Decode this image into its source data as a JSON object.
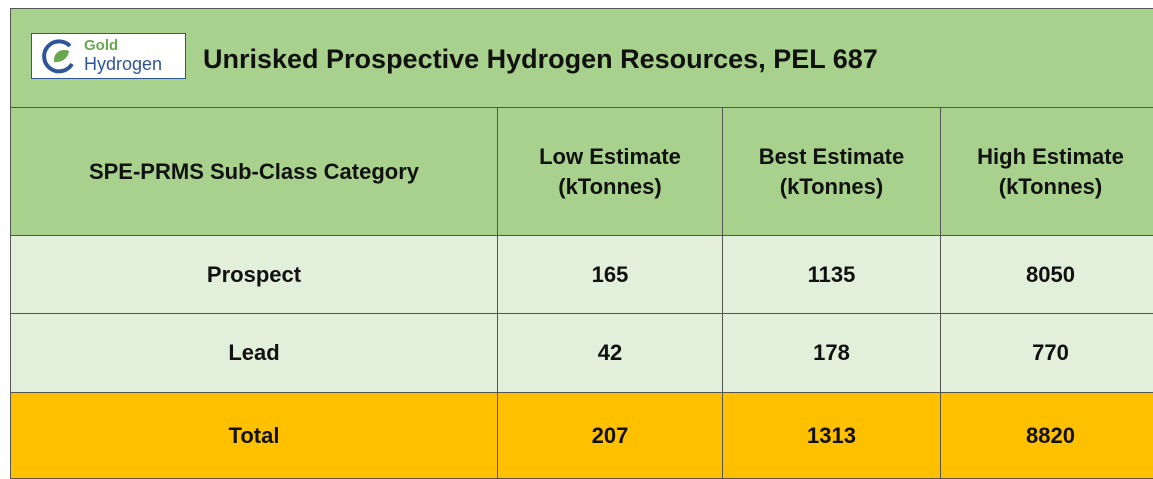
{
  "header": {
    "logo": {
      "brand_top": "Gold",
      "brand_bottom": "Hydrogen"
    },
    "title": "Unrisked Prospective Hydrogen Resources, PEL 687"
  },
  "table": {
    "columns": [
      "SPE-PRMS Sub-Class Category",
      "Low Estimate (kTonnes)",
      "Best Estimate (kTonnes)",
      "High Estimate (kTonnes)"
    ],
    "rows": [
      [
        "Prospect",
        165,
        1135,
        8050
      ],
      [
        "Lead",
        42,
        178,
        770
      ],
      [
        "Total",
        207,
        1313,
        8820
      ]
    ]
  }
}
